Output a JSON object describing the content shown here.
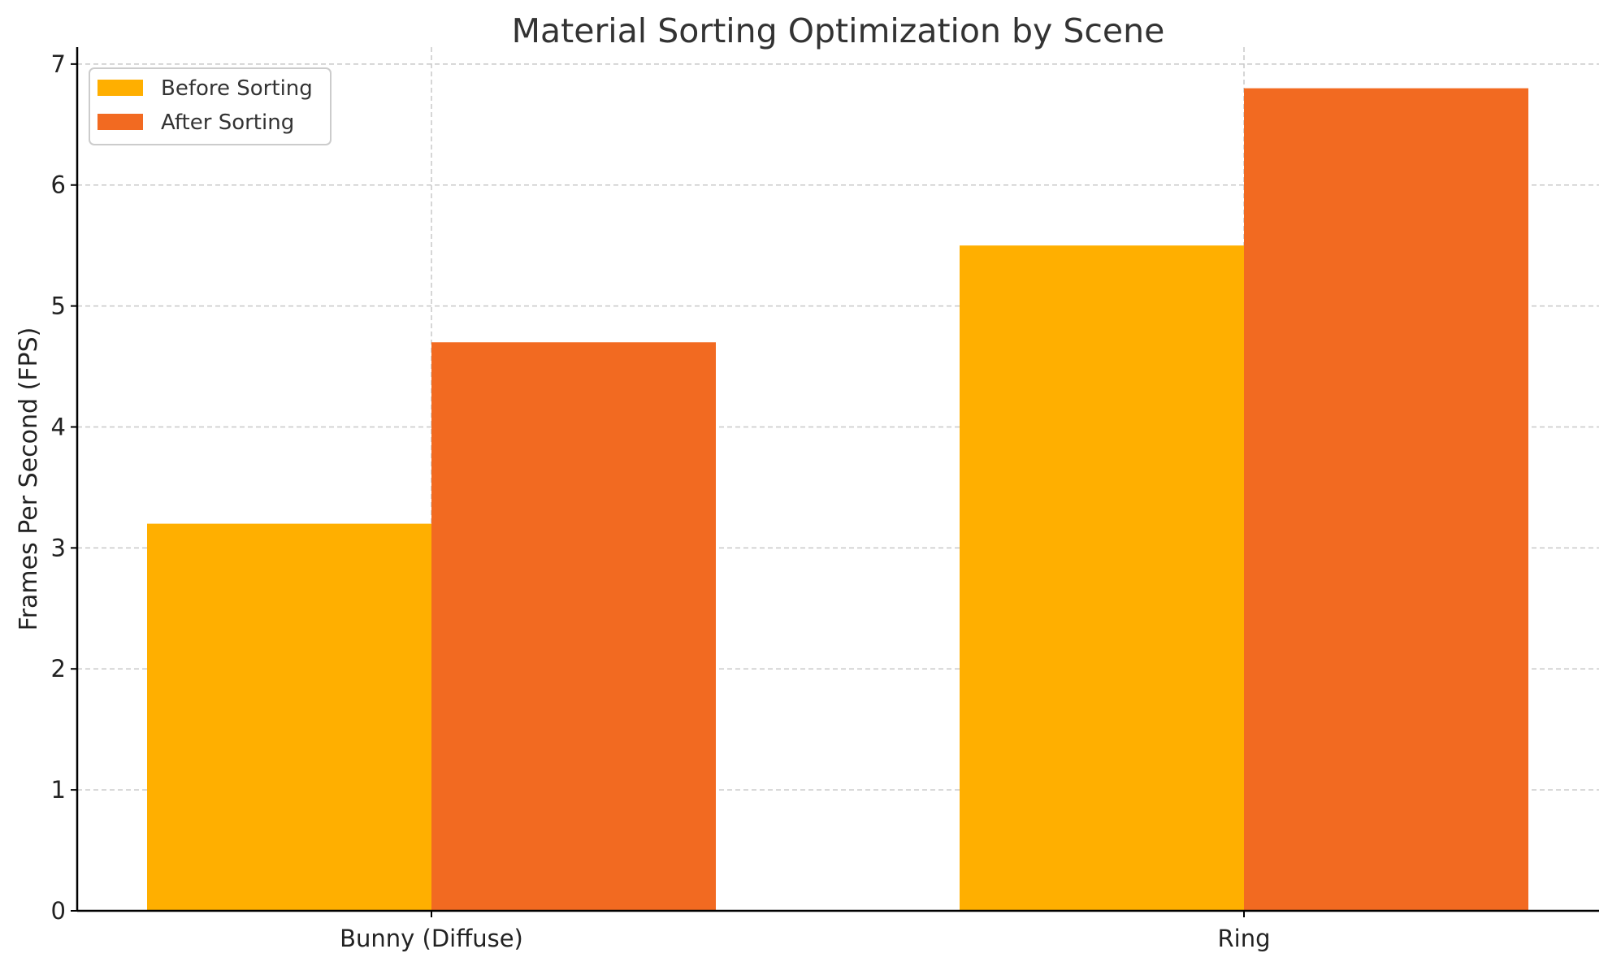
{
  "chart_data": {
    "type": "bar",
    "title": "Material Sorting Optimization by Scene",
    "xlabel": "",
    "ylabel": "Frames Per Second (FPS)",
    "categories": [
      "Bunny (Diffuse)",
      "Ring"
    ],
    "series": [
      {
        "name": "Before Sorting",
        "values": [
          3.2,
          5.5
        ],
        "color": "#FFAF00"
      },
      {
        "name": "After Sorting",
        "values": [
          4.7,
          6.8
        ],
        "color": "#F26A21"
      }
    ],
    "ylim": [
      0,
      7.14
    ],
    "yticks": [
      0,
      1,
      2,
      3,
      4,
      5,
      6,
      7
    ],
    "grid": true,
    "legend_position": "top-left"
  }
}
